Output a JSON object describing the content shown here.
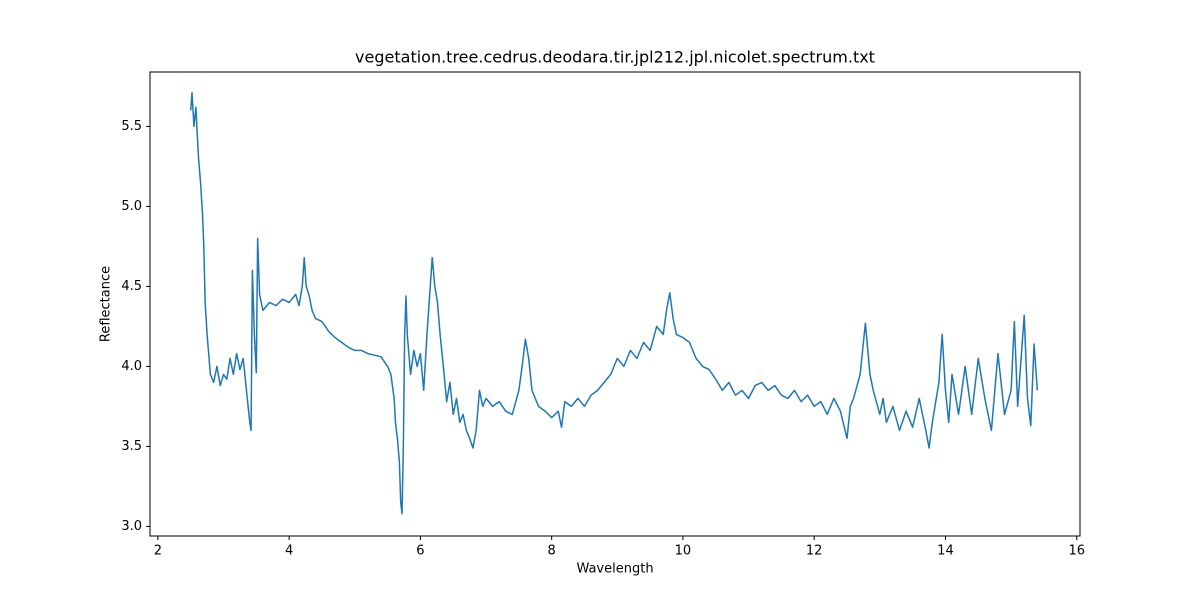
{
  "chart_data": {
    "type": "line",
    "title": "vegetation.tree.cedrus.deodara.tir.jpl212.jpl.nicolet.spectrum.txt",
    "x_label": "Wavelength",
    "y_label": "Reflectance",
    "color": "#1f77b4",
    "xlim": [
      1.88,
      16.05
    ],
    "ylim": [
      2.94,
      5.84
    ],
    "xticks": [
      2,
      4,
      6,
      8,
      10,
      12,
      14,
      16
    ],
    "yticks": [
      {
        "value": 3,
        "label": "3.0"
      },
      3.5,
      {
        "value": 4,
        "label": "4.0"
      },
      4.5,
      {
        "value": 5,
        "label": "5.0"
      },
      5.5
    ],
    "x": [
      2.5,
      2.52,
      2.55,
      2.58,
      2.6,
      2.62,
      2.65,
      2.68,
      2.7,
      2.72,
      2.75,
      2.78,
      2.8,
      2.85,
      2.9,
      2.95,
      3.0,
      3.05,
      3.1,
      3.15,
      3.2,
      3.25,
      3.3,
      3.35,
      3.4,
      3.42,
      3.44,
      3.47,
      3.5,
      3.52,
      3.55,
      3.6,
      3.7,
      3.8,
      3.9,
      4.0,
      4.1,
      4.15,
      4.2,
      4.23,
      4.26,
      4.3,
      4.35,
      4.4,
      4.5,
      4.6,
      4.7,
      4.8,
      4.9,
      5.0,
      5.1,
      5.2,
      5.3,
      5.4,
      5.5,
      5.55,
      5.6,
      5.62,
      5.65,
      5.68,
      5.7,
      5.72,
      5.74,
      5.76,
      5.78,
      5.8,
      5.85,
      5.9,
      5.95,
      6.0,
      6.05,
      6.1,
      6.15,
      6.18,
      6.22,
      6.26,
      6.3,
      6.35,
      6.4,
      6.45,
      6.5,
      6.55,
      6.6,
      6.65,
      6.7,
      6.75,
      6.8,
      6.85,
      6.9,
      6.95,
      7.0,
      7.1,
      7.2,
      7.3,
      7.4,
      7.5,
      7.55,
      7.6,
      7.65,
      7.7,
      7.8,
      7.9,
      8.0,
      8.1,
      8.15,
      8.2,
      8.3,
      8.4,
      8.5,
      8.6,
      8.7,
      8.8,
      8.9,
      9.0,
      9.1,
      9.2,
      9.3,
      9.4,
      9.5,
      9.6,
      9.7,
      9.75,
      9.8,
      9.85,
      9.9,
      10.0,
      10.1,
      10.2,
      10.3,
      10.4,
      10.5,
      10.6,
      10.7,
      10.8,
      10.9,
      11.0,
      11.1,
      11.2,
      11.3,
      11.4,
      11.5,
      11.6,
      11.7,
      11.8,
      11.9,
      12.0,
      12.1,
      12.2,
      12.3,
      12.4,
      12.5,
      12.55,
      12.6,
      12.7,
      12.78,
      12.85,
      12.9,
      13.0,
      13.05,
      13.1,
      13.2,
      13.3,
      13.4,
      13.5,
      13.6,
      13.7,
      13.75,
      13.8,
      13.9,
      13.95,
      14.0,
      14.05,
      14.1,
      14.2,
      14.3,
      14.4,
      14.5,
      14.6,
      14.7,
      14.8,
      14.9,
      15.0,
      15.05,
      15.1,
      15.2,
      15.25,
      15.3,
      15.35,
      15.4
    ],
    "values": [
      5.6,
      5.71,
      5.5,
      5.62,
      5.45,
      5.3,
      5.15,
      4.95,
      4.75,
      4.4,
      4.2,
      4.05,
      3.95,
      3.9,
      4.0,
      3.88,
      3.95,
      3.92,
      4.05,
      3.95,
      4.08,
      3.98,
      4.05,
      3.85,
      3.65,
      3.6,
      4.6,
      4.2,
      3.96,
      4.8,
      4.45,
      4.35,
      4.4,
      4.38,
      4.42,
      4.4,
      4.45,
      4.38,
      4.5,
      4.68,
      4.5,
      4.45,
      4.35,
      4.3,
      4.28,
      4.22,
      4.18,
      4.15,
      4.12,
      4.1,
      4.1,
      4.08,
      4.07,
      4.06,
      4.0,
      3.95,
      3.8,
      3.65,
      3.55,
      3.4,
      3.15,
      3.08,
      3.5,
      4.2,
      4.44,
      4.2,
      3.95,
      4.1,
      4.0,
      4.08,
      3.85,
      4.2,
      4.5,
      4.68,
      4.5,
      4.4,
      4.2,
      4.0,
      3.78,
      3.9,
      3.7,
      3.8,
      3.65,
      3.7,
      3.6,
      3.55,
      3.49,
      3.6,
      3.85,
      3.75,
      3.8,
      3.75,
      3.78,
      3.72,
      3.7,
      3.85,
      4.0,
      4.17,
      4.05,
      3.85,
      3.75,
      3.72,
      3.68,
      3.72,
      3.62,
      3.78,
      3.75,
      3.8,
      3.75,
      3.82,
      3.85,
      3.9,
      3.95,
      4.05,
      4.0,
      4.1,
      4.05,
      4.15,
      4.1,
      4.25,
      4.2,
      4.35,
      4.46,
      4.3,
      4.2,
      4.18,
      4.15,
      4.05,
      4.0,
      3.98,
      3.92,
      3.85,
      3.9,
      3.82,
      3.85,
      3.8,
      3.88,
      3.9,
      3.85,
      3.88,
      3.82,
      3.8,
      3.85,
      3.78,
      3.82,
      3.75,
      3.78,
      3.7,
      3.8,
      3.72,
      3.55,
      3.75,
      3.8,
      3.95,
      4.27,
      3.95,
      3.85,
      3.7,
      3.8,
      3.65,
      3.75,
      3.6,
      3.72,
      3.62,
      3.8,
      3.6,
      3.49,
      3.65,
      3.9,
      4.2,
      3.85,
      3.65,
      3.95,
      3.7,
      4.0,
      3.7,
      4.05,
      3.8,
      3.6,
      4.08,
      3.7,
      3.85,
      4.28,
      3.75,
      4.32,
      3.8,
      3.63,
      4.14,
      3.85
    ]
  }
}
